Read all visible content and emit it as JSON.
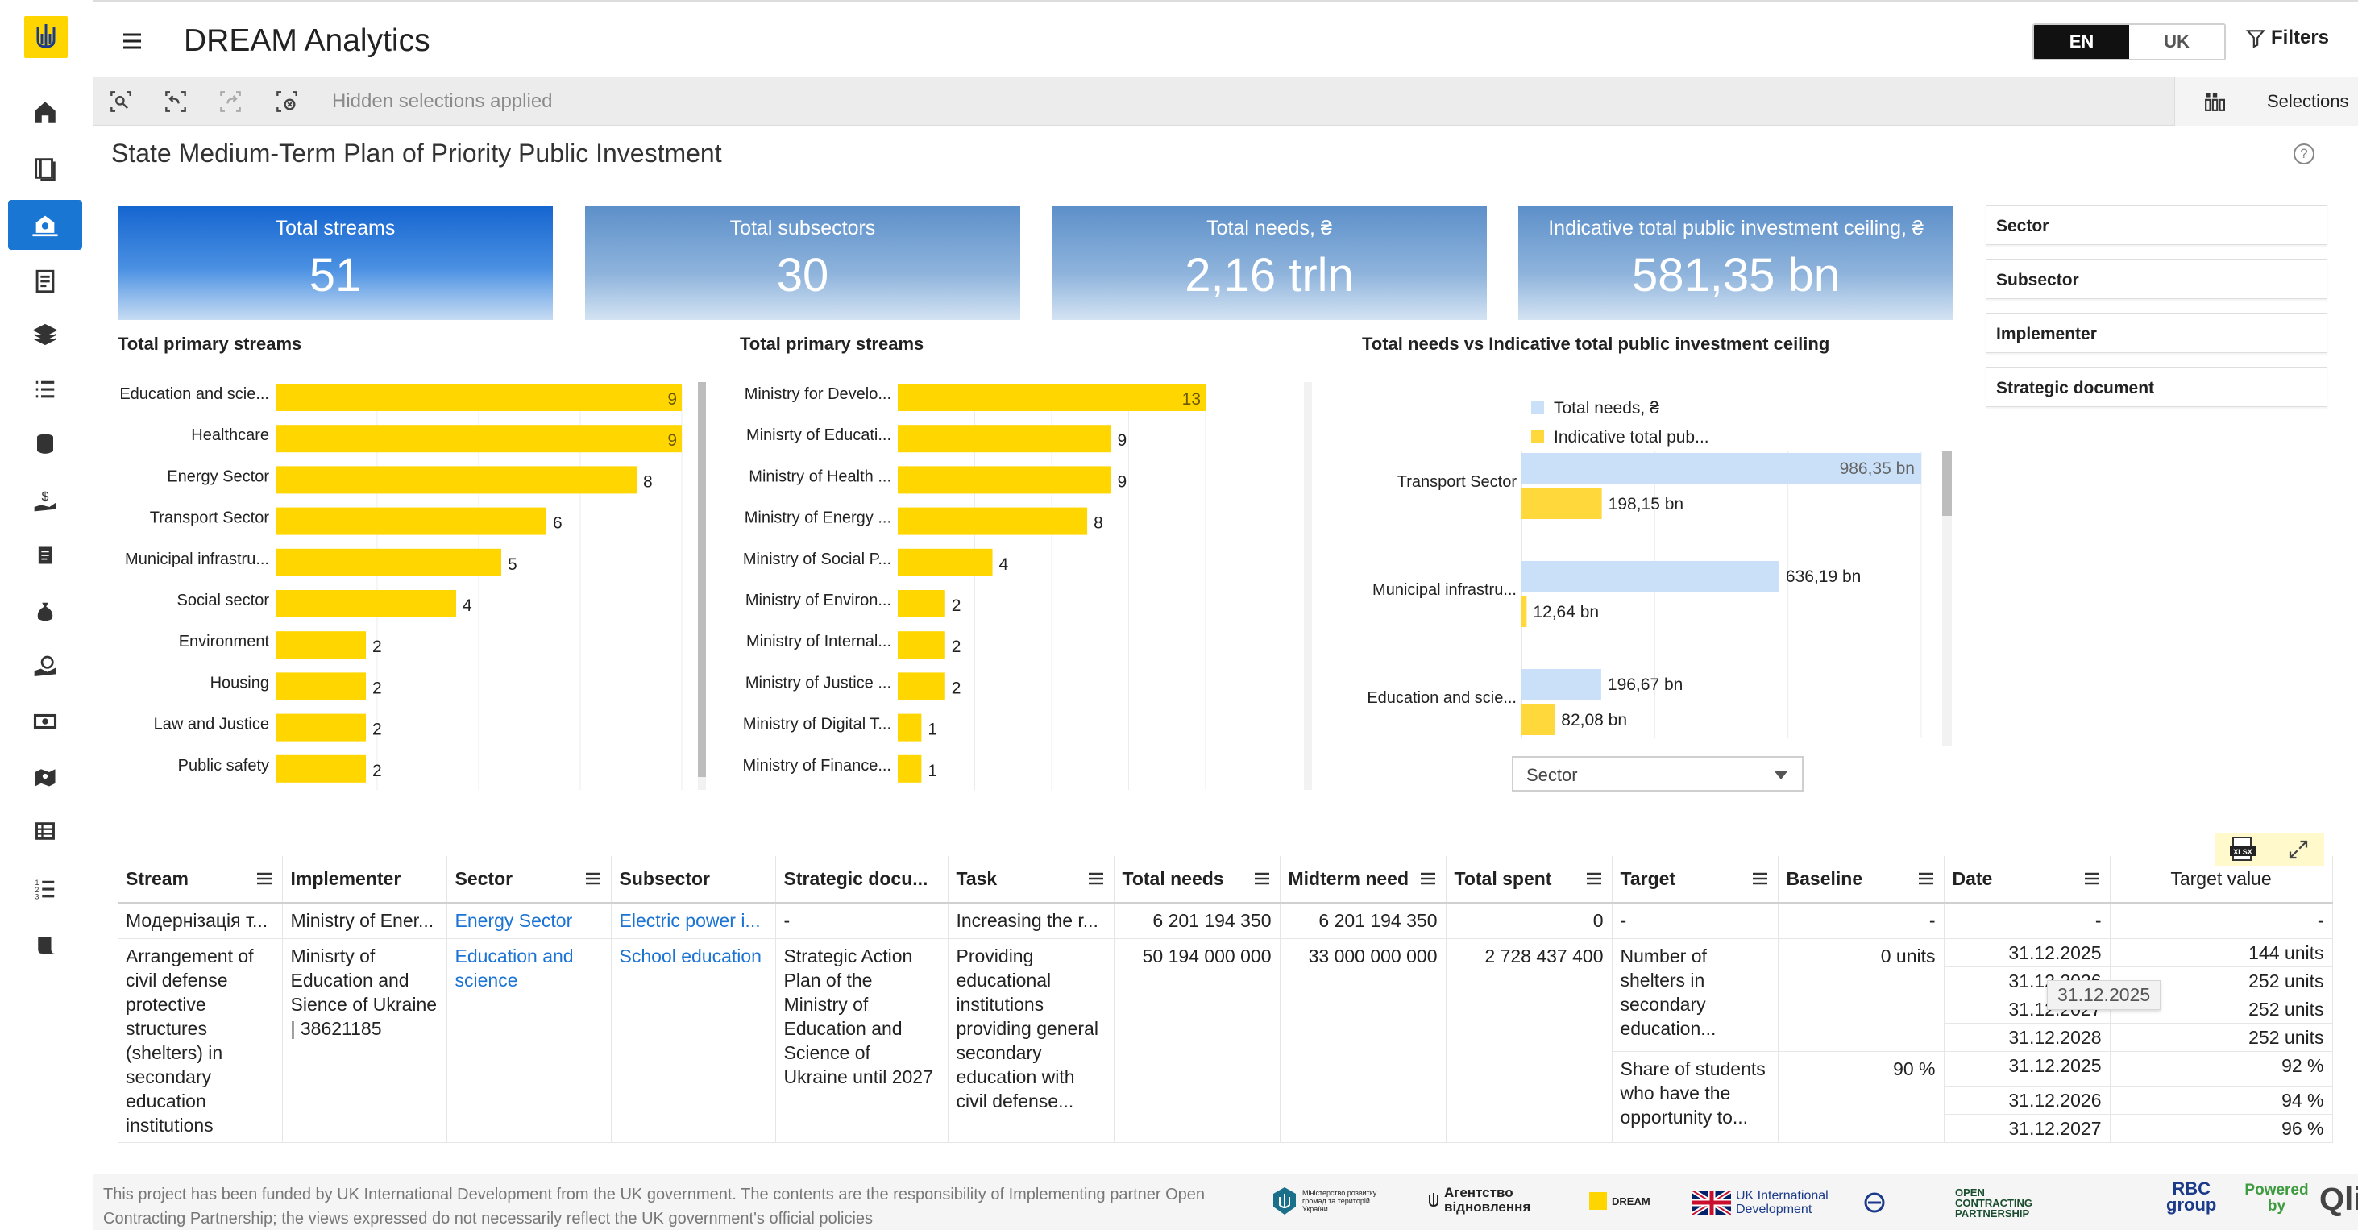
{
  "app": {
    "title": "DREAM Analytics"
  },
  "header": {
    "lang_en": "EN",
    "lang_uk": "UK",
    "filters_label": "Filters"
  },
  "selections": {
    "hidden_text": "Hidden selections applied",
    "selections_label": "Selections"
  },
  "sheet": {
    "title": "State Medium-Term Plan of Priority Public Investment",
    "help": "?"
  },
  "kpis": [
    {
      "label": "Total streams",
      "value": "51"
    },
    {
      "label": "Total subsectors",
      "value": "30"
    },
    {
      "label": "Total needs, ₴",
      "value": "2,16 trln"
    },
    {
      "label": "Indicative total public investment ceiling, ₴",
      "value": "581,35 bn"
    }
  ],
  "filter_panel": [
    "Sector",
    "Subsector",
    "Implementer",
    "Strategic document"
  ],
  "chart_data": [
    {
      "type": "bar",
      "orientation": "horizontal",
      "title": "Total primary streams",
      "categories": [
        "Education and scie...",
        "Healthcare",
        "Energy Sector",
        "Transport Sector",
        "Municipal infrastru...",
        "Social sector",
        "Environment",
        "Housing",
        "Law and Justice",
        "Public safety"
      ],
      "values": [
        9,
        9,
        8,
        6,
        5,
        4,
        2,
        2,
        2,
        2
      ],
      "xlim": [
        0,
        9
      ],
      "color": "#ffd600"
    },
    {
      "type": "bar",
      "orientation": "horizontal",
      "title": "Total primary streams",
      "categories": [
        "Ministry for Develo...",
        "Minisrty of Educati...",
        "Ministry of Health ...",
        "Ministry of Energy ...",
        "Ministry of Social P...",
        "Ministry of Environ...",
        "Ministry of Internal...",
        "Ministry of Justice ...",
        "Ministry of Digital T...",
        "Ministry of Finance..."
      ],
      "values": [
        13,
        9,
        9,
        8,
        4,
        2,
        2,
        2,
        1,
        1
      ],
      "xlim": [
        0,
        13
      ],
      "color": "#ffd600"
    },
    {
      "type": "bar",
      "orientation": "horizontal",
      "title": "Total needs vs Indicative total public investment ceiling",
      "legend": [
        "Total needs, ₴",
        "Indicative total pub..."
      ],
      "categories": [
        "Transport Sector",
        "Municipal infrastru...",
        "Education and scie..."
      ],
      "series": [
        {
          "name": "Total needs, ₴",
          "values": [
            986.35,
            636.19,
            196.67
          ],
          "labels": [
            "986,35 bn",
            "636,19 bn",
            "196,67 bn"
          ],
          "color": "#c9e0f8"
        },
        {
          "name": "Indicative total pub...",
          "values": [
            198.15,
            12.64,
            82.08
          ],
          "labels": [
            "198,15 bn",
            "12,64 bn",
            "82,08 bn"
          ],
          "color": "#ffd83b"
        }
      ],
      "xlim": [
        0,
        986.35
      ],
      "dimension_select": "Sector"
    }
  ],
  "table": {
    "columns": [
      "Stream",
      "Implementer",
      "Sector",
      "Subsector",
      "Strategic docu...",
      "Task",
      "Total needs",
      "Midterm need",
      "Total spent",
      "Target",
      "Baseline",
      "Date",
      "Target value"
    ],
    "row1": [
      "Модернізація т...",
      "Ministry of Ener...",
      "Energy Sector",
      "Electric power i...",
      "-",
      "Increasing the r...",
      "6 201 194 350",
      "6 201 194 350",
      "0",
      "-",
      "-",
      "-",
      "-"
    ],
    "row2": {
      "stream": "Arrangement of civil defense protective structures (shelters) in secondary education institutions",
      "implementer": "Minisrty of Education and Sience of Ukraine | 38621185",
      "sector": "Education and science",
      "subsector": "School education",
      "strategic": "Strategic Action Plan of the Ministry of Education and Science of Ukraine until 2027",
      "task": "Providing educational institutions providing general secondary education with civil defense...",
      "total_needs": "50 194 000 000",
      "midterm": "33 000 000 000",
      "spent": "2 728 437 400",
      "targets": [
        {
          "target": "Number of shelters in secondary education...",
          "baseline": "0 units",
          "rows": [
            {
              "date": "31.12.2025",
              "value": "144 units"
            },
            {
              "date": "31.12.2026",
              "value": "252 units"
            },
            {
              "date": "31.12.2027",
              "value": "252 units"
            },
            {
              "date": "31.12.2028",
              "value": "252 units"
            }
          ]
        },
        {
          "target": "Share of students who have the opportunity to...",
          "baseline": "90 %",
          "rows": [
            {
              "date": "31.12.2025",
              "value": "92 %"
            },
            {
              "date": "31.12.2026",
              "value": "94 %"
            },
            {
              "date": "31.12.2027",
              "value": "96 %"
            }
          ]
        }
      ]
    },
    "tooltip": "31.12.2025",
    "export_badge": "XLSX"
  },
  "footer": {
    "text": "This project has been funded by UK International Development from the UK government. The contents are the responsibility of Implementing partner Open Contracting Partnership; the views expressed do not necessarily reflect the UK government's official policies",
    "partners": {
      "ministry": "Міністерство розвитку громад та територій України",
      "agency": "Агентство відновлення",
      "dream": "DREAM",
      "ukid": "UK International Development",
      "ocp": "OPEN CONTRACTING PARTNERSHIP",
      "rbc": "RBC group",
      "powered": "Powered by",
      "qlik": "Qlik"
    }
  }
}
